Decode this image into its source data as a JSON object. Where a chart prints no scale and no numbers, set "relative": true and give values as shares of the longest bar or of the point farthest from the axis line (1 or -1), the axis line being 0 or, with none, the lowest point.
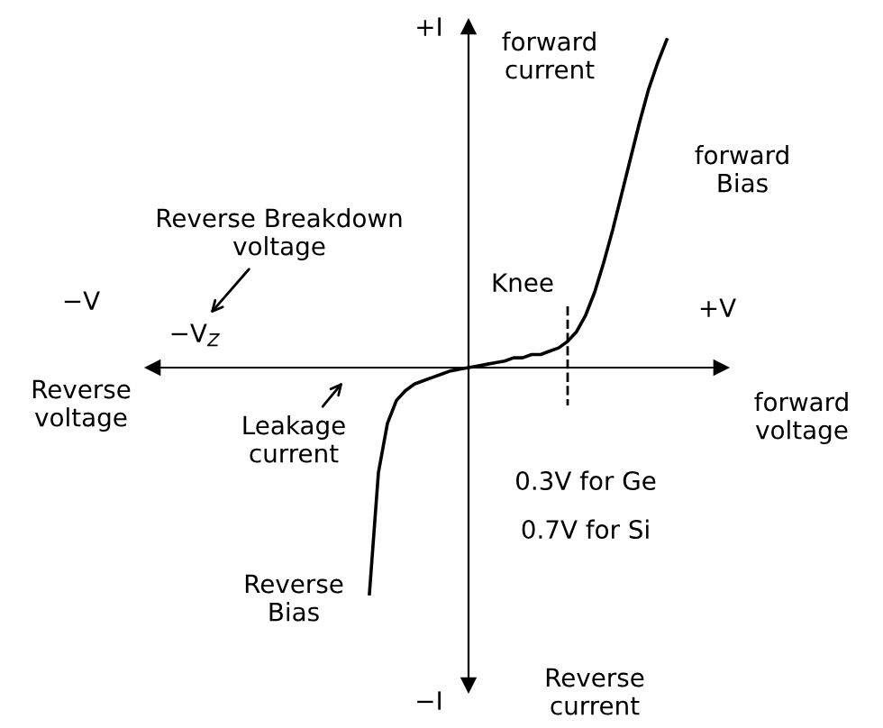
{
  "chart_data": {
    "type": "line",
    "relative": true,
    "color": "#000000",
    "categories": [
      null,
      null,
      null,
      null,
      null,
      null,
      null,
      null,
      null,
      null,
      null,
      null,
      null,
      null,
      null,
      null,
      null,
      null,
      null,
      null,
      null,
      null,
      null,
      null,
      null,
      null,
      null,
      null,
      null,
      null,
      null,
      null,
      null,
      null,
      null,
      null,
      null,
      null,
      null,
      null,
      null,
      null,
      null,
      null,
      null,
      null,
      null,
      null,
      null,
      null,
      null,
      null,
      null,
      null,
      null,
      null,
      null,
      null,
      null,
      null,
      null,
      null,
      null
    ],
    "values": [
      null,
      null,
      null,
      null,
      null,
      null,
      null,
      null,
      null,
      null,
      null,
      null,
      null,
      null,
      null,
      null,
      null,
      null,
      null,
      null,
      null,
      null,
      null,
      -0.69,
      -0.32,
      -0.17,
      -0.1,
      -0.07,
      -0.05,
      -0.04,
      -0.03,
      -0.02,
      -0.01,
      -0.005,
      0,
      0.005,
      0.01,
      0.015,
      0.02,
      0.03,
      0.03,
      0.04,
      0.04,
      0.05,
      0.06,
      0.08,
      0.11,
      0.16,
      0.23,
      0.32,
      0.42,
      0.53,
      0.64,
      0.75,
      0.85,
      0.93,
      1,
      null,
      null,
      null,
      null,
      null,
      null
    ],
    "annotations": [
      "+I",
      "forward\ncurrent",
      "−I",
      "Reverse\ncurrent",
      "−V",
      "+V",
      "Reverse\nvoltage",
      "forward\nvoltage",
      "Reverse Breakdown\nvoltage",
      "−V$_{Z}$",
      "Leakage\ncurrent",
      "Knee",
      "0.3V for Ge",
      "0.7V for Si",
      "forward\nBias",
      "Reverse\nBias"
    ]
  }
}
